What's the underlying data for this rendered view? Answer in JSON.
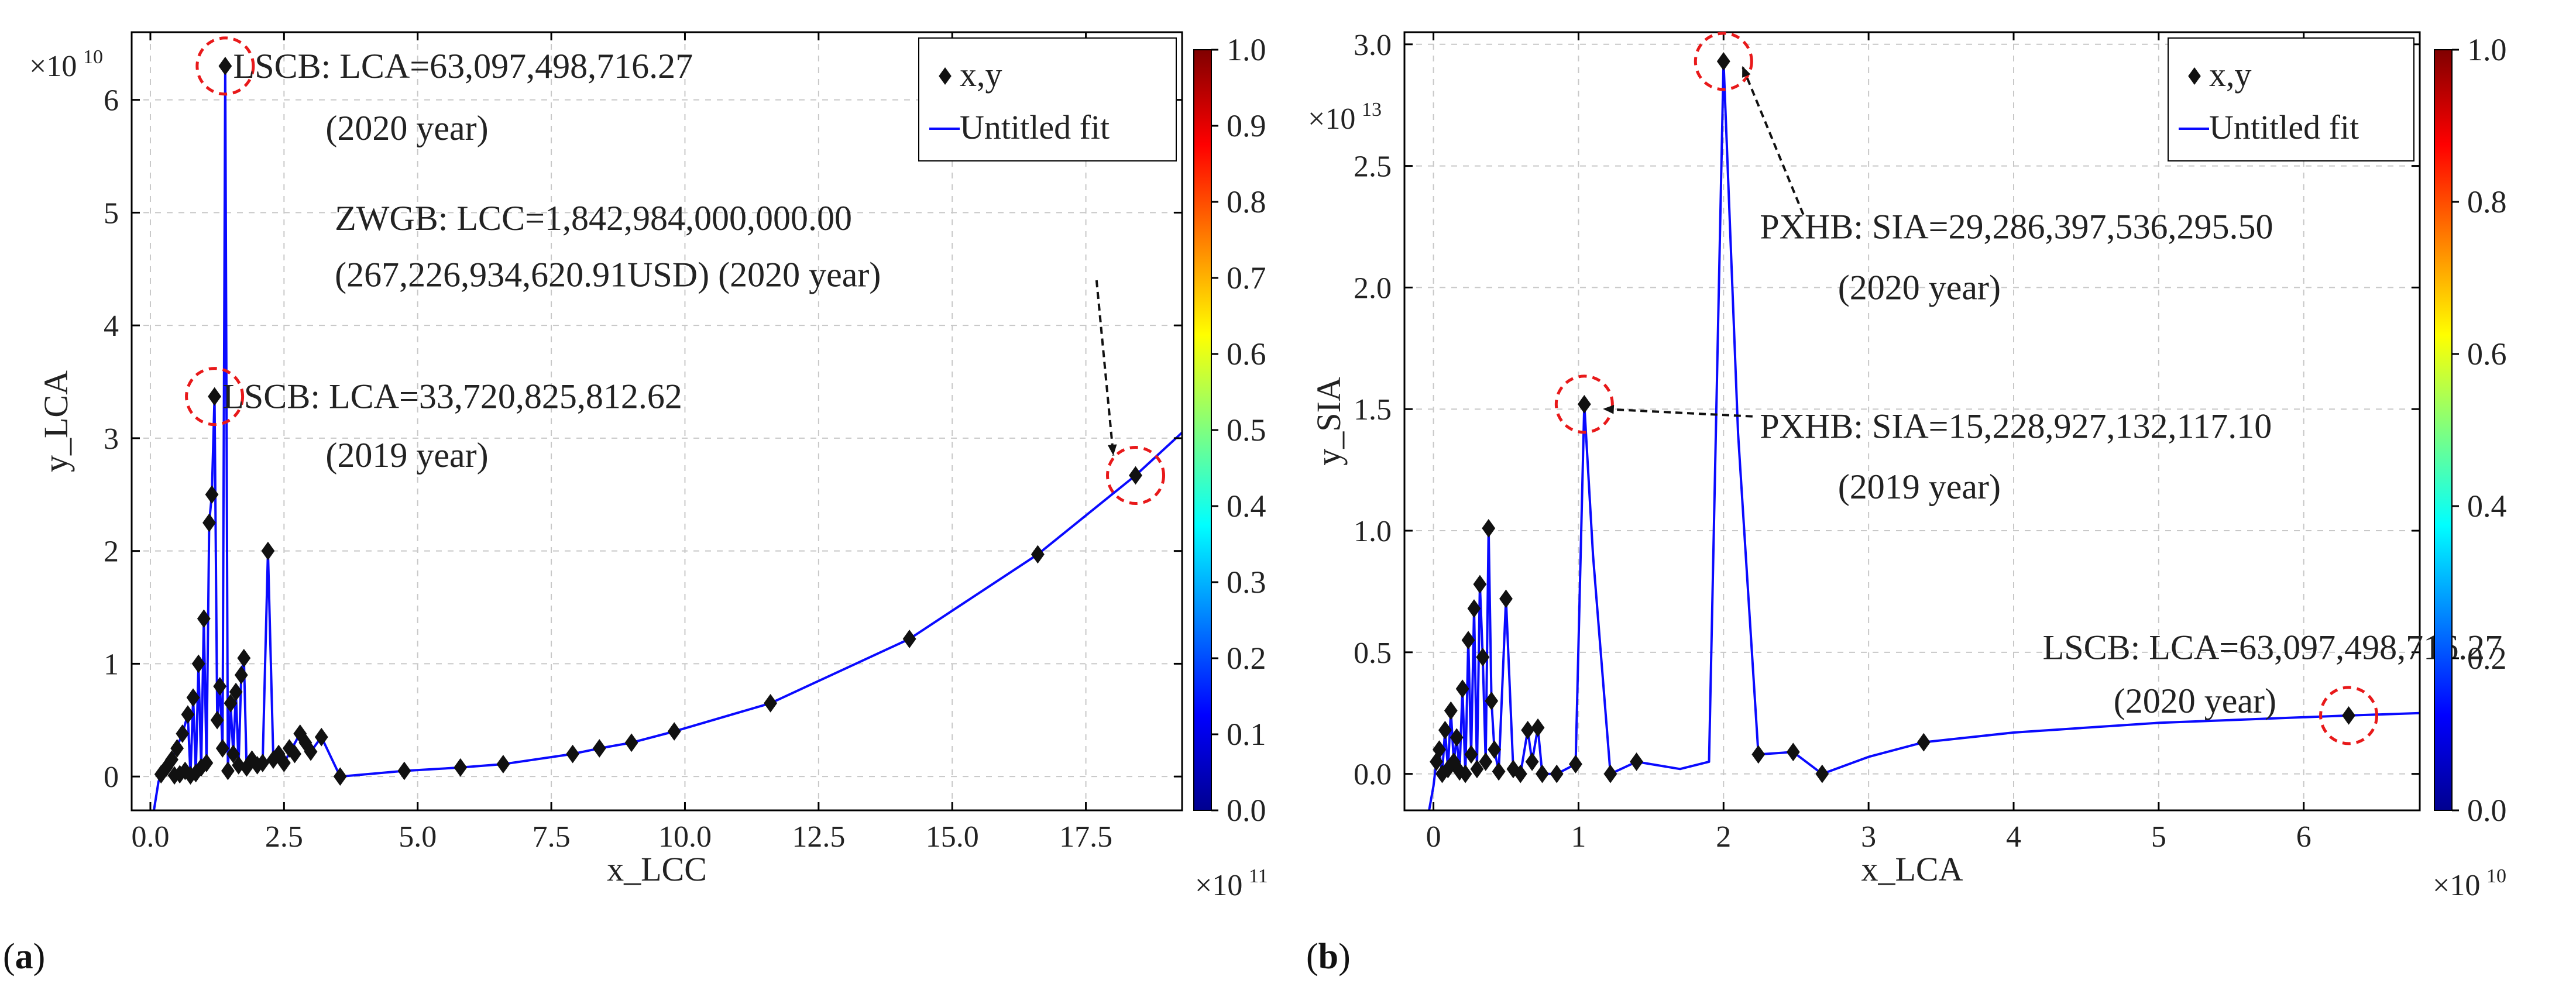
{
  "chart_data": [
    {
      "panel_label": "(a)",
      "type": "scatter",
      "xlabel": "x_LCC",
      "ylabel": "y_LCA",
      "x_multiplier_label": "×10",
      "x_multiplier_exp": "11",
      "y_multiplier_label": "×10",
      "y_multiplier_exp": "10",
      "xlim": [
        -0.35,
        19.3
      ],
      "ylim": [
        -0.3,
        6.6
      ],
      "x_ticks": [
        0.0,
        2.5,
        5.0,
        7.5,
        10.0,
        12.5,
        15.0,
        17.5
      ],
      "x_tick_labels": [
        "0.0",
        "2.5",
        "5.0",
        "7.5",
        "10.0",
        "12.5",
        "15.0",
        "17.5"
      ],
      "y_ticks": [
        0,
        1,
        2,
        3,
        4,
        5,
        6
      ],
      "y_tick_labels": [
        "0",
        "1",
        "2",
        "3",
        "4",
        "5",
        "6"
      ],
      "grid": true,
      "legend": {
        "position": "top-right",
        "points_label": "x,y",
        "fit_label": "Untitled fit"
      },
      "colorbar": {
        "min": 0.0,
        "max": 1.0,
        "tick_labels": [
          "0.0",
          "0.1",
          "0.2",
          "0.3",
          "0.4",
          "0.5",
          "0.6",
          "0.7",
          "0.8",
          "0.9",
          "1.0"
        ]
      },
      "points": [
        {
          "x": 0.2,
          "y": 0.02
        },
        {
          "x": 0.3,
          "y": 0.08
        },
        {
          "x": 0.4,
          "y": 0.15
        },
        {
          "x": 0.45,
          "y": 0.01
        },
        {
          "x": 0.5,
          "y": 0.25
        },
        {
          "x": 0.55,
          "y": 0.02
        },
        {
          "x": 0.6,
          "y": 0.38
        },
        {
          "x": 0.65,
          "y": 0.05
        },
        {
          "x": 0.7,
          "y": 0.55
        },
        {
          "x": 0.75,
          "y": 0.01
        },
        {
          "x": 0.8,
          "y": 0.7
        },
        {
          "x": 0.85,
          "y": 0.03
        },
        {
          "x": 0.9,
          "y": 1.0
        },
        {
          "x": 0.95,
          "y": 0.08
        },
        {
          "x": 1.0,
          "y": 1.4
        },
        {
          "x": 1.05,
          "y": 0.12
        },
        {
          "x": 1.1,
          "y": 2.25
        },
        {
          "x": 1.15,
          "y": 2.5
        },
        {
          "x": 1.2,
          "y": 3.37
        },
        {
          "x": 1.25,
          "y": 0.5
        },
        {
          "x": 1.3,
          "y": 0.8
        },
        {
          "x": 1.35,
          "y": 0.25
        },
        {
          "x": 1.4,
          "y": 6.3
        },
        {
          "x": 1.45,
          "y": 0.05
        },
        {
          "x": 1.5,
          "y": 0.65
        },
        {
          "x": 1.55,
          "y": 0.2
        },
        {
          "x": 1.6,
          "y": 0.75
        },
        {
          "x": 1.65,
          "y": 0.1
        },
        {
          "x": 1.7,
          "y": 0.9
        },
        {
          "x": 1.75,
          "y": 1.05
        },
        {
          "x": 1.8,
          "y": 0.08
        },
        {
          "x": 1.9,
          "y": 0.15
        },
        {
          "x": 2.0,
          "y": 0.1
        },
        {
          "x": 2.1,
          "y": 0.12
        },
        {
          "x": 2.2,
          "y": 2.0
        },
        {
          "x": 2.3,
          "y": 0.15
        },
        {
          "x": 2.4,
          "y": 0.2
        },
        {
          "x": 2.5,
          "y": 0.12
        },
        {
          "x": 2.6,
          "y": 0.25
        },
        {
          "x": 2.7,
          "y": 0.2
        },
        {
          "x": 2.8,
          "y": 0.38
        },
        {
          "x": 2.9,
          "y": 0.3
        },
        {
          "x": 3.0,
          "y": 0.22
        },
        {
          "x": 3.2,
          "y": 0.35
        },
        {
          "x": 3.55,
          "y": 0.0
        },
        {
          "x": 4.75,
          "y": 0.05
        },
        {
          "x": 5.8,
          "y": 0.08
        },
        {
          "x": 6.6,
          "y": 0.11
        },
        {
          "x": 7.9,
          "y": 0.2
        },
        {
          "x": 8.4,
          "y": 0.25
        },
        {
          "x": 9.0,
          "y": 0.3
        },
        {
          "x": 9.8,
          "y": 0.4
        },
        {
          "x": 11.6,
          "y": 0.65
        },
        {
          "x": 14.2,
          "y": 1.22
        },
        {
          "x": 16.6,
          "y": 1.97
        },
        {
          "x": 18.43,
          "y": 2.67
        }
      ],
      "fit_curve": [
        {
          "x": 0.05,
          "y": -0.35
        },
        {
          "x": 0.15,
          "y": -0.05
        },
        {
          "x": 0.2,
          "y": 0.02
        },
        {
          "x": 0.4,
          "y": 0.15
        },
        {
          "x": 0.6,
          "y": 0.38
        },
        {
          "x": 0.7,
          "y": 0.55
        },
        {
          "x": 0.75,
          "y": 0.01
        },
        {
          "x": 0.8,
          "y": 0.7
        },
        {
          "x": 0.85,
          "y": 0.03
        },
        {
          "x": 0.9,
          "y": 1.0
        },
        {
          "x": 0.95,
          "y": 0.08
        },
        {
          "x": 1.0,
          "y": 1.4
        },
        {
          "x": 1.05,
          "y": 0.12
        },
        {
          "x": 1.1,
          "y": 2.25
        },
        {
          "x": 1.15,
          "y": 2.5
        },
        {
          "x": 1.2,
          "y": 3.37
        },
        {
          "x": 1.25,
          "y": 0.5
        },
        {
          "x": 1.3,
          "y": 0.8
        },
        {
          "x": 1.35,
          "y": 0.25
        },
        {
          "x": 1.4,
          "y": 6.3
        },
        {
          "x": 1.45,
          "y": 0.05
        },
        {
          "x": 1.5,
          "y": 0.65
        },
        {
          "x": 1.55,
          "y": 0.2
        },
        {
          "x": 1.6,
          "y": 0.75
        },
        {
          "x": 1.65,
          "y": 0.1
        },
        {
          "x": 1.7,
          "y": 0.9
        },
        {
          "x": 1.75,
          "y": 1.05
        },
        {
          "x": 1.8,
          "y": 0.08
        },
        {
          "x": 2.0,
          "y": 0.1
        },
        {
          "x": 2.1,
          "y": 0.12
        },
        {
          "x": 2.2,
          "y": 2.0
        },
        {
          "x": 2.3,
          "y": 0.15
        },
        {
          "x": 2.5,
          "y": 0.12
        },
        {
          "x": 2.8,
          "y": 0.38
        },
        {
          "x": 3.0,
          "y": 0.22
        },
        {
          "x": 3.2,
          "y": 0.35
        },
        {
          "x": 3.55,
          "y": 0.0
        },
        {
          "x": 4.75,
          "y": 0.05
        },
        {
          "x": 5.8,
          "y": 0.08
        },
        {
          "x": 6.6,
          "y": 0.11
        },
        {
          "x": 7.9,
          "y": 0.2
        },
        {
          "x": 8.4,
          "y": 0.25
        },
        {
          "x": 9.0,
          "y": 0.3
        },
        {
          "x": 9.8,
          "y": 0.4
        },
        {
          "x": 11.6,
          "y": 0.65
        },
        {
          "x": 14.2,
          "y": 1.22
        },
        {
          "x": 16.6,
          "y": 1.97
        },
        {
          "x": 18.43,
          "y": 2.67
        },
        {
          "x": 19.3,
          "y": 3.05
        }
      ],
      "annotations": [
        {
          "lines": [
            "LSCB: LCA=63,097,498,716.27",
            "(2020 year)"
          ],
          "px": 1.4,
          "py": 6.3,
          "tx": 1.55,
          "ty": 6.3,
          "ty2": 5.75,
          "tx2": 4.8,
          "anchor2": "middle",
          "leader": false
        },
        {
          "lines": [
            "ZWGB:      LCC=1,842,984,000,000.00",
            "(267,226,934,620.91USD) (2020 year)"
          ],
          "px": 18.43,
          "py": 2.67,
          "tx": 3.45,
          "ty": 4.95,
          "ty2": 4.45,
          "tx2": 3.45,
          "anchor2": "start",
          "leader": true,
          "leader_from": [
            17.7,
            4.4
          ]
        },
        {
          "lines": [
            "LSCB: LCA=33,720,825,812.62",
            "(2019 year)"
          ],
          "px": 1.2,
          "py": 3.37,
          "tx": 1.35,
          "ty": 3.37,
          "ty2": 2.85,
          "tx2": 4.8,
          "anchor2": "middle",
          "leader": false
        }
      ]
    },
    {
      "panel_label": "(b)",
      "type": "scatter",
      "xlabel": "x_LCA",
      "ylabel": "y_SIA",
      "x_multiplier_label": "×10",
      "x_multiplier_exp": "10",
      "y_multiplier_label": "×10",
      "y_multiplier_exp": "13",
      "xlim": [
        -0.2,
        6.8
      ],
      "ylim": [
        -0.15,
        3.05
      ],
      "x_ticks": [
        0,
        1,
        2,
        3,
        4,
        5,
        6
      ],
      "x_tick_labels": [
        "0",
        "1",
        "2",
        "3",
        "4",
        "5",
        "6"
      ],
      "y_ticks": [
        0.0,
        0.5,
        1.0,
        1.5,
        2.0,
        2.5,
        3.0
      ],
      "y_tick_labels": [
        "0.0",
        "0.5",
        "1.0",
        "1.5",
        "2.0",
        "2.5",
        "3.0"
      ],
      "grid": true,
      "legend": {
        "position": "top-right",
        "points_label": "x,y",
        "fit_label": "Untitled fit"
      },
      "colorbar": {
        "min": 0.0,
        "max": 1.0,
        "tick_labels": [
          "0.0",
          "0.2",
          "0.4",
          "0.6",
          "0.8",
          "1.0"
        ]
      },
      "points": [
        {
          "x": 0.02,
          "y": 0.05
        },
        {
          "x": 0.04,
          "y": 0.1
        },
        {
          "x": 0.06,
          "y": 0.0
        },
        {
          "x": 0.08,
          "y": 0.18
        },
        {
          "x": 0.1,
          "y": 0.02
        },
        {
          "x": 0.12,
          "y": 0.26
        },
        {
          "x": 0.14,
          "y": 0.05
        },
        {
          "x": 0.16,
          "y": 0.15
        },
        {
          "x": 0.18,
          "y": 0.01
        },
        {
          "x": 0.2,
          "y": 0.35
        },
        {
          "x": 0.22,
          "y": 0.0
        },
        {
          "x": 0.24,
          "y": 0.55
        },
        {
          "x": 0.26,
          "y": 0.08
        },
        {
          "x": 0.28,
          "y": 0.68
        },
        {
          "x": 0.3,
          "y": 0.02
        },
        {
          "x": 0.32,
          "y": 0.78
        },
        {
          "x": 0.34,
          "y": 0.48
        },
        {
          "x": 0.36,
          "y": 0.05
        },
        {
          "x": 0.38,
          "y": 1.01
        },
        {
          "x": 0.4,
          "y": 0.3
        },
        {
          "x": 0.42,
          "y": 0.1
        },
        {
          "x": 0.45,
          "y": 0.01
        },
        {
          "x": 0.5,
          "y": 0.72
        },
        {
          "x": 0.55,
          "y": 0.02
        },
        {
          "x": 0.6,
          "y": 0.0
        },
        {
          "x": 0.65,
          "y": 0.18
        },
        {
          "x": 0.68,
          "y": 0.05
        },
        {
          "x": 0.72,
          "y": 0.19
        },
        {
          "x": 0.75,
          "y": 0.0
        },
        {
          "x": 0.85,
          "y": 0.0
        },
        {
          "x": 0.98,
          "y": 0.04
        },
        {
          "x": 1.04,
          "y": 1.52
        },
        {
          "x": 1.22,
          "y": 0.0
        },
        {
          "x": 1.4,
          "y": 0.05
        },
        {
          "x": 2.0,
          "y": 2.93
        },
        {
          "x": 2.24,
          "y": 0.08
        },
        {
          "x": 2.48,
          "y": 0.09
        },
        {
          "x": 2.68,
          "y": 0.0
        },
        {
          "x": 3.38,
          "y": 0.13
        },
        {
          "x": 6.31,
          "y": 0.24
        }
      ],
      "fit_curve": [
        {
          "x": -0.03,
          "y": -0.15
        },
        {
          "x": 0.0,
          "y": -0.05
        },
        {
          "x": 0.02,
          "y": 0.05
        },
        {
          "x": 0.04,
          "y": 0.1
        },
        {
          "x": 0.06,
          "y": 0.0
        },
        {
          "x": 0.08,
          "y": 0.18
        },
        {
          "x": 0.1,
          "y": 0.02
        },
        {
          "x": 0.12,
          "y": 0.26
        },
        {
          "x": 0.14,
          "y": 0.05
        },
        {
          "x": 0.16,
          "y": 0.15
        },
        {
          "x": 0.18,
          "y": 0.01
        },
        {
          "x": 0.2,
          "y": 0.35
        },
        {
          "x": 0.22,
          "y": 0.0
        },
        {
          "x": 0.24,
          "y": 0.55
        },
        {
          "x": 0.26,
          "y": 0.08
        },
        {
          "x": 0.28,
          "y": 0.68
        },
        {
          "x": 0.3,
          "y": 0.02
        },
        {
          "x": 0.32,
          "y": 0.78
        },
        {
          "x": 0.34,
          "y": 0.48
        },
        {
          "x": 0.36,
          "y": 0.05
        },
        {
          "x": 0.38,
          "y": 1.01
        },
        {
          "x": 0.4,
          "y": 0.3
        },
        {
          "x": 0.42,
          "y": 0.1
        },
        {
          "x": 0.45,
          "y": 0.01
        },
        {
          "x": 0.5,
          "y": 0.72
        },
        {
          "x": 0.55,
          "y": 0.02
        },
        {
          "x": 0.6,
          "y": 0.0
        },
        {
          "x": 0.65,
          "y": 0.18
        },
        {
          "x": 0.68,
          "y": 0.05
        },
        {
          "x": 0.72,
          "y": 0.19
        },
        {
          "x": 0.75,
          "y": 0.0
        },
        {
          "x": 0.85,
          "y": 0.0
        },
        {
          "x": 0.98,
          "y": 0.04
        },
        {
          "x": 1.04,
          "y": 1.52
        },
        {
          "x": 1.1,
          "y": 0.9
        },
        {
          "x": 1.22,
          "y": 0.0
        },
        {
          "x": 1.4,
          "y": 0.05
        },
        {
          "x": 1.7,
          "y": 0.02
        },
        {
          "x": 1.9,
          "y": 0.05
        },
        {
          "x": 2.0,
          "y": 2.93
        },
        {
          "x": 2.1,
          "y": 1.4
        },
        {
          "x": 2.24,
          "y": 0.08
        },
        {
          "x": 2.48,
          "y": 0.09
        },
        {
          "x": 2.68,
          "y": 0.0
        },
        {
          "x": 3.0,
          "y": 0.07
        },
        {
          "x": 3.38,
          "y": 0.13
        },
        {
          "x": 4.0,
          "y": 0.17
        },
        {
          "x": 5.0,
          "y": 0.21
        },
        {
          "x": 6.31,
          "y": 0.24
        },
        {
          "x": 6.8,
          "y": 0.25
        }
      ],
      "annotations": [
        {
          "lines": [
            "PXHB: SIA=29,286,397,536,295.50",
            "(2020 year)"
          ],
          "px": 2.0,
          "py": 2.93,
          "tx": 2.25,
          "ty": 2.25,
          "ty2": 2.0,
          "tx2": 3.35,
          "anchor2": "middle",
          "leader": true,
          "leader_from": [
            2.55,
            2.3
          ]
        },
        {
          "lines": [
            "PXHB: SIA=15,228,927,132,117.10",
            "(2019 year)"
          ],
          "px": 1.04,
          "py": 1.52,
          "tx": 2.25,
          "ty": 1.43,
          "ty2": 1.18,
          "tx2": 3.35,
          "anchor2": "middle",
          "leader": true,
          "leader_from": [
            2.2,
            1.47
          ]
        },
        {
          "lines": [
            "LSCB: LCA=63,097,498,716.27",
            "(2020 year)"
          ],
          "px": 6.31,
          "py": 0.24,
          "tx": 4.2,
          "ty": 0.52,
          "ty2": 0.3,
          "tx2": 5.25,
          "anchor2": "middle",
          "leader": false
        }
      ]
    }
  ]
}
